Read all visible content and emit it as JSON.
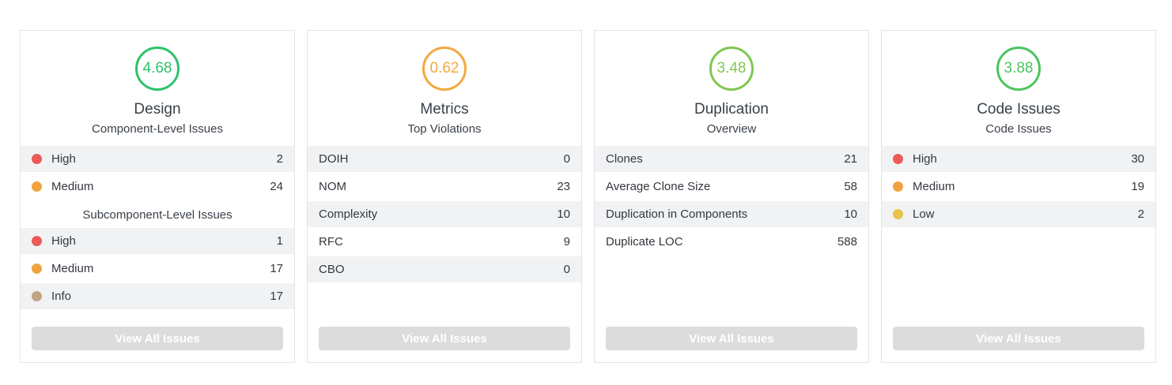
{
  "button_label": "View All Issues",
  "colors": {
    "severity_high": "#ec5b57",
    "severity_medium": "#f0a33e",
    "severity_low": "#e7c447",
    "severity_info": "#c2a386",
    "stripe": "#f1f2f4",
    "button_bg": "#dcdcdc"
  },
  "cards": [
    {
      "score": "4.68",
      "score_color": "#2cc36b",
      "title": "Design",
      "subtitle": "Component-Level Issues",
      "button_label": "View All Issues",
      "sections": [
        {
          "header": null,
          "rows": [
            {
              "dot": "#ec5b57",
              "label": "High",
              "value": "2"
            },
            {
              "dot": "#f0a33e",
              "label": "Medium",
              "value": "24"
            }
          ]
        },
        {
          "header": "Subcomponent-Level Issues",
          "rows": [
            {
              "dot": "#ec5b57",
              "label": "High",
              "value": "1"
            },
            {
              "dot": "#f0a33e",
              "label": "Medium",
              "value": "17"
            },
            {
              "dot": "#c2a386",
              "label": "Info",
              "value": "17"
            }
          ]
        }
      ]
    },
    {
      "score": "0.62",
      "score_color": "#f2a93d",
      "title": "Metrics",
      "subtitle": "Top Violations",
      "button_label": "View All Issues",
      "sections": [
        {
          "header": null,
          "rows": [
            {
              "dot": null,
              "label": "DOIH",
              "value": "0"
            },
            {
              "dot": null,
              "label": "NOM",
              "value": "23"
            },
            {
              "dot": null,
              "label": "Complexity",
              "value": "10"
            },
            {
              "dot": null,
              "label": "RFC",
              "value": "9"
            },
            {
              "dot": null,
              "label": "CBO",
              "value": "0"
            }
          ]
        }
      ]
    },
    {
      "score": "3.48",
      "score_color": "#7ec851",
      "title": "Duplication",
      "subtitle": "Overview",
      "button_label": "View All Issues",
      "sections": [
        {
          "header": null,
          "rows": [
            {
              "dot": null,
              "label": "Clones",
              "value": "21"
            },
            {
              "dot": null,
              "label": "Average Clone Size",
              "value": "58"
            },
            {
              "dot": null,
              "label": "Duplication in Components",
              "value": "10"
            },
            {
              "dot": null,
              "label": "Duplicate LOC",
              "value": "588"
            }
          ]
        }
      ]
    },
    {
      "score": "3.88",
      "score_color": "#4cc55f",
      "title": "Code Issues",
      "subtitle": "Code Issues",
      "button_label": "View All Issues",
      "sections": [
        {
          "header": null,
          "rows": [
            {
              "dot": "#ec5b57",
              "label": "High",
              "value": "30"
            },
            {
              "dot": "#f0a33e",
              "label": "Medium",
              "value": "19"
            },
            {
              "dot": "#e7c447",
              "label": "Low",
              "value": "2"
            }
          ]
        }
      ]
    }
  ]
}
